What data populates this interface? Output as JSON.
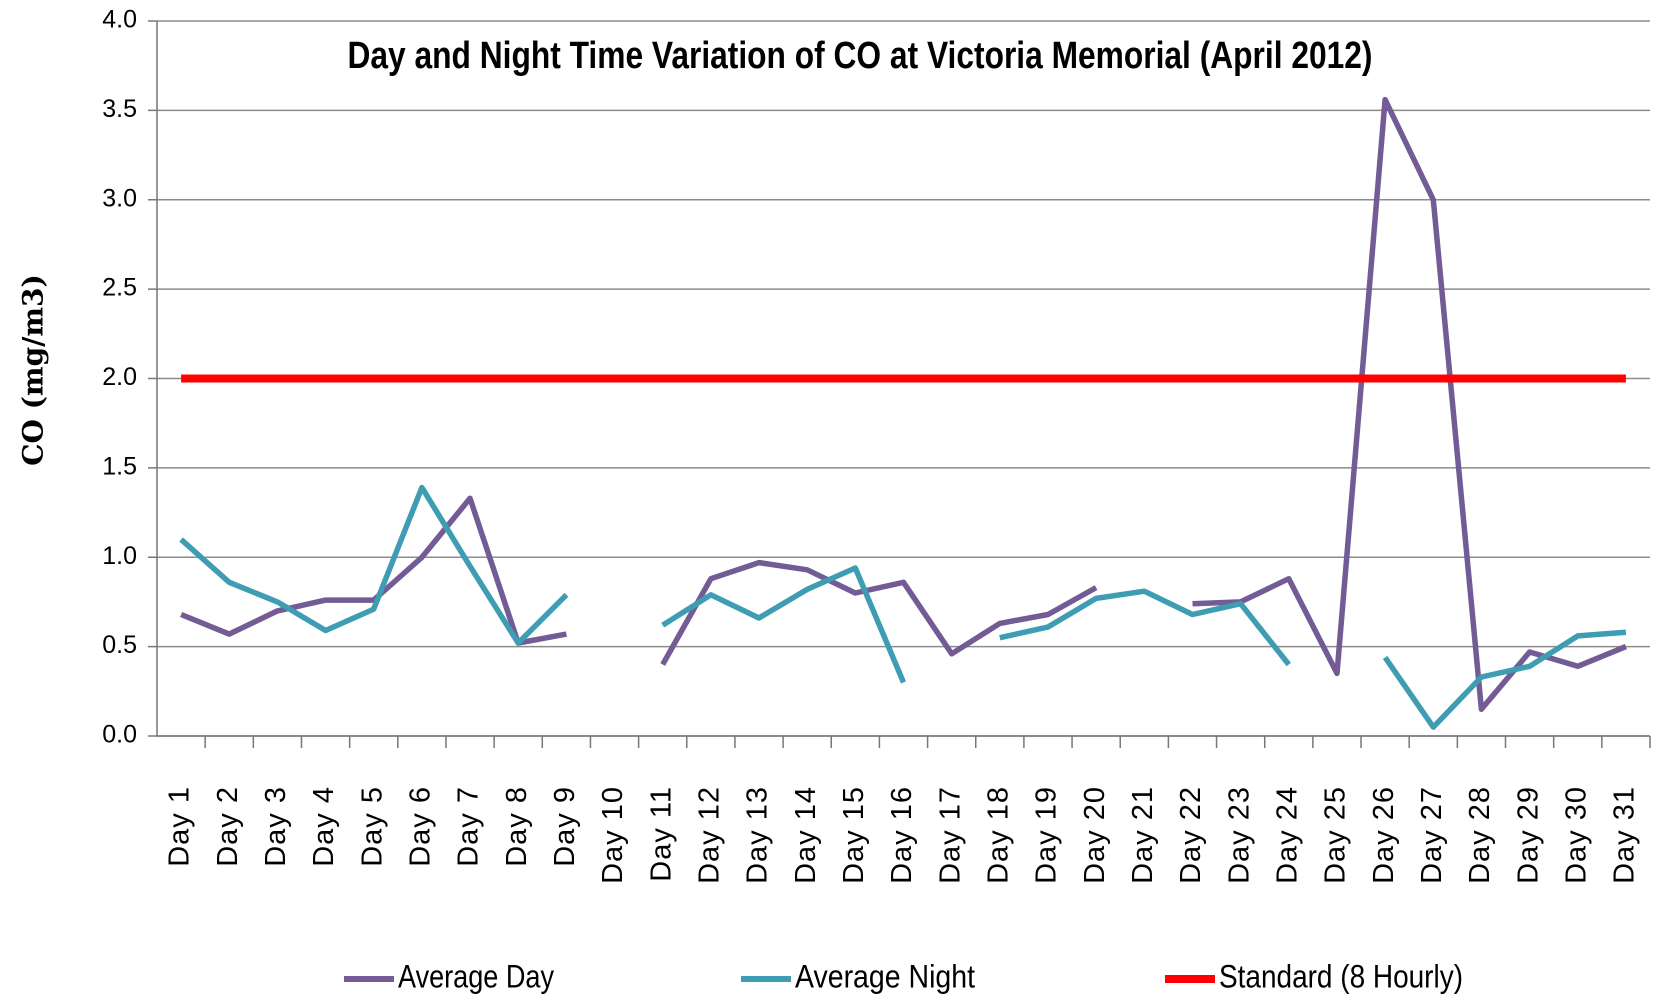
{
  "chart_data": {
    "type": "line",
    "title": "Day and Night Time Variation of CO at Victoria Memorial (April 2012)",
    "y_label": "CO (mg/m3)",
    "categories": [
      "Day 1",
      "Day 2",
      "Day 3",
      "Day 4",
      "Day 5",
      "Day 6",
      "Day 7",
      "Day 8",
      "Day 9",
      "Day 10",
      "Day 11",
      "Day 12",
      "Day 13",
      "Day 14",
      "Day 15",
      "Day 16",
      "Day 17",
      "Day 18",
      "Day 19",
      "Day 20",
      "Day 21",
      "Day 22",
      "Day 23",
      "Day 24",
      "Day 25",
      "Day 26",
      "Day 27",
      "Day 28",
      "Day 29",
      "Day 30",
      "Day 31"
    ],
    "series": [
      {
        "name": "Average Day",
        "color": "#735b95",
        "values": [
          0.68,
          0.57,
          0.7,
          0.76,
          0.76,
          1.0,
          1.33,
          0.52,
          0.57,
          null,
          0.4,
          0.88,
          0.97,
          0.93,
          0.8,
          0.86,
          0.46,
          0.63,
          0.68,
          0.83,
          null,
          0.74,
          0.75,
          0.88,
          0.35,
          3.56,
          3.0,
          0.15,
          0.47,
          0.39,
          0.5
        ]
      },
      {
        "name": "Average Night",
        "color": "#3e9db2",
        "values": [
          1.1,
          0.86,
          0.75,
          0.59,
          0.71,
          1.39,
          0.95,
          0.52,
          0.79,
          null,
          0.62,
          0.79,
          0.66,
          0.82,
          0.94,
          0.3,
          null,
          0.55,
          0.61,
          0.77,
          0.81,
          0.68,
          0.74,
          0.4,
          null,
          0.44,
          0.05,
          0.33,
          0.39,
          0.56,
          0.58
        ]
      },
      {
        "name": "Standard (8 Hourly)",
        "color": "#ff0000",
        "values": [
          2,
          2,
          2,
          2,
          2,
          2,
          2,
          2,
          2,
          2,
          2,
          2,
          2,
          2,
          2,
          2,
          2,
          2,
          2,
          2,
          2,
          2,
          2,
          2,
          2,
          2,
          2,
          2,
          2,
          2,
          2
        ]
      }
    ],
    "ylim": [
      0,
      4
    ],
    "yticks": [
      {
        "value": 0,
        "label": "0.0"
      },
      0.5,
      {
        "value": 1,
        "label": "1.0"
      },
      1.5,
      {
        "value": 2,
        "label": "2.0"
      },
      2.5,
      {
        "value": 3,
        "label": "3.0"
      },
      3.5,
      {
        "value": 4,
        "label": "4.0"
      }
    ],
    "grid": true,
    "legend": "bottom"
  }
}
